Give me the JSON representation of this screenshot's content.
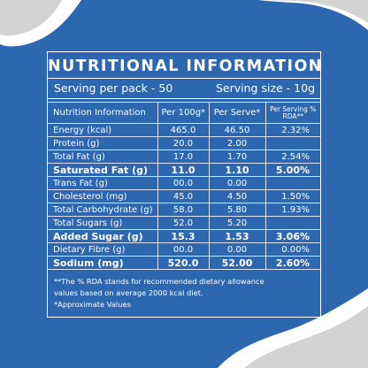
{
  "colors": {
    "background": "#2d67b0",
    "panel_border": "#ffffff",
    "wave_light": "#ffffff",
    "wave_gray": "#d3d3d3"
  },
  "title": "NUTRITIONAL INFORMATION",
  "serving": {
    "pack": "Serving per pack - 50",
    "size": "Serving size - 10g"
  },
  "table": {
    "headers": [
      "Nutrition Information",
      "Per 100g*",
      "Per Serve*",
      "Per Serving % RDA**"
    ],
    "rows": [
      {
        "name": "Energy (kcal)",
        "per100": "465.0",
        "serve": "46.50",
        "rda": "2.32%",
        "bold": false
      },
      {
        "name": "Protein (g)",
        "per100": "20.0",
        "serve": "2.00",
        "rda": "",
        "bold": false
      },
      {
        "name": "Total Fat (g)",
        "per100": "17.0",
        "serve": "1.70",
        "rda": "2.54%",
        "bold": false
      },
      {
        "name": "Saturated Fat (g)",
        "per100": "11.0",
        "serve": "1.10",
        "rda": "5.00%",
        "bold": true
      },
      {
        "name": "Trans Fat (g)",
        "per100": "00.0",
        "serve": "0.00",
        "rda": "",
        "bold": false
      },
      {
        "name": "Cholesterol (mg)",
        "per100": "45.0",
        "serve": "4.50",
        "rda": "1.50%",
        "bold": false
      },
      {
        "name": "Total Carbohydrate (g)",
        "per100": "58.0",
        "serve": "5.80",
        "rda": "1.93%",
        "bold": false
      },
      {
        "name": "Total Sugars (g)",
        "per100": "52.0",
        "serve": "5.20",
        "rda": "",
        "bold": false
      },
      {
        "name": "Added  Sugar (g)",
        "per100": "15.3",
        "serve": "1.53",
        "rda": "3.06%",
        "bold": true
      },
      {
        "name": "Dietary Fibre (g)",
        "per100": "00.0",
        "serve": "0.00",
        "rda": "0.00%",
        "bold": false
      },
      {
        "name": "Sodium (mg)",
        "per100": "520.0",
        "serve": "52.00",
        "rda": "2.60%",
        "bold": true
      }
    ]
  },
  "notes": {
    "line1": "**The % RDA stands for recommended dietary allowance",
    "line2": "values based on average 2000 kcal diet.",
    "line3": "*Approximate Values"
  }
}
